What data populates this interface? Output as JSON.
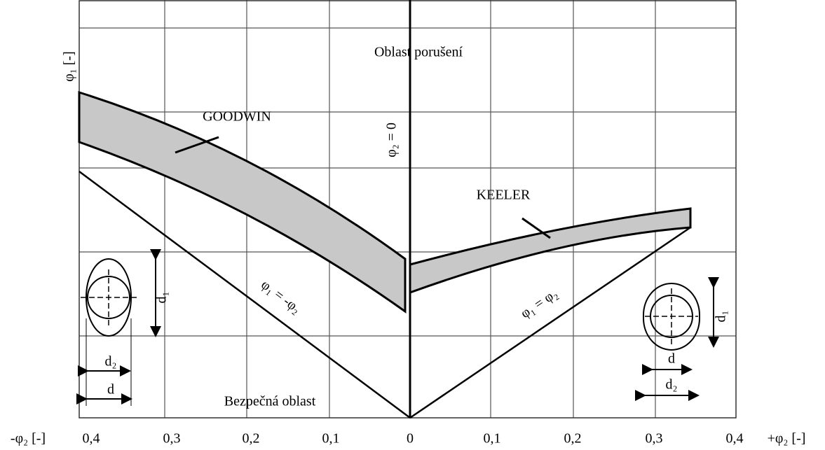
{
  "axis": {
    "y_label": "φ₁ [-]",
    "x_left_label": "-φ₂ [-]",
    "x_right_label": "+φ₂ [-]",
    "x_ticks": [
      "0,4",
      "0,3",
      "0,2",
      "0,1",
      "0",
      "0,1",
      "0,2",
      "0,3",
      "0,4"
    ]
  },
  "regions": {
    "top": "Oblast porušení",
    "bottom": "Bezpečná oblast"
  },
  "curves": {
    "goodwin": "GOODWIN",
    "keeler": "KEELER"
  },
  "lines": {
    "zero": "φ₂ = 0",
    "left": "φ₁ = -φ₂",
    "right": "φ₁ = φ₂"
  },
  "icons": {
    "left": {
      "d1": "d₁",
      "d2": "d₂",
      "d": "d"
    },
    "right": {
      "d1": "d₁",
      "d": "d",
      "d2": "d₂"
    }
  }
}
